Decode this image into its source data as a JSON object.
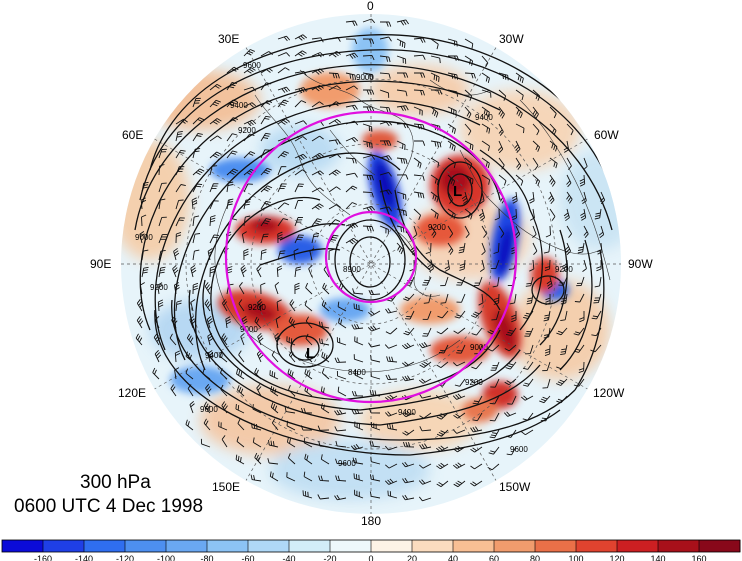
{
  "title": {
    "level": "300 hPa",
    "datetime": "0600 UTC 4 Dec 1998"
  },
  "longitude_labels": [
    "0",
    "30W",
    "60W",
    "90W",
    "120W",
    "150W",
    "180",
    "150E",
    "120E",
    "90E",
    "60E",
    "30E"
  ],
  "contour_labels": [
    "9600",
    "9400",
    "9200",
    "9000",
    "9400",
    "9200",
    "8900",
    "9200",
    "9000",
    "9400",
    "9000",
    "9200",
    "9400",
    "9600",
    "9600",
    "9200",
    "8400",
    "9600",
    "9000",
    "9200"
  ],
  "pressure_systems": [
    "L",
    "L"
  ],
  "colorbar": {
    "ticks": [
      "-160",
      "-140",
      "-120",
      "-100",
      "-80",
      "-60",
      "-40",
      "-20",
      "0",
      "20",
      "40",
      "60",
      "80",
      "100",
      "120",
      "140",
      "160"
    ],
    "colors": [
      "#0b0bd8",
      "#1f3fe6",
      "#2f6ef0",
      "#4d8ff0",
      "#6aa8f2",
      "#8cc3f5",
      "#afd8f7",
      "#d2edf8",
      "#eef8fb",
      "#fdf3e6",
      "#fbdcbf",
      "#f8bf94",
      "#f19c6d",
      "#ea7048",
      "#e0432f",
      "#cc1f22",
      "#a8101a",
      "#88081a"
    ]
  },
  "colors": {
    "ring": "#e010e0",
    "contour": "#111111"
  }
}
